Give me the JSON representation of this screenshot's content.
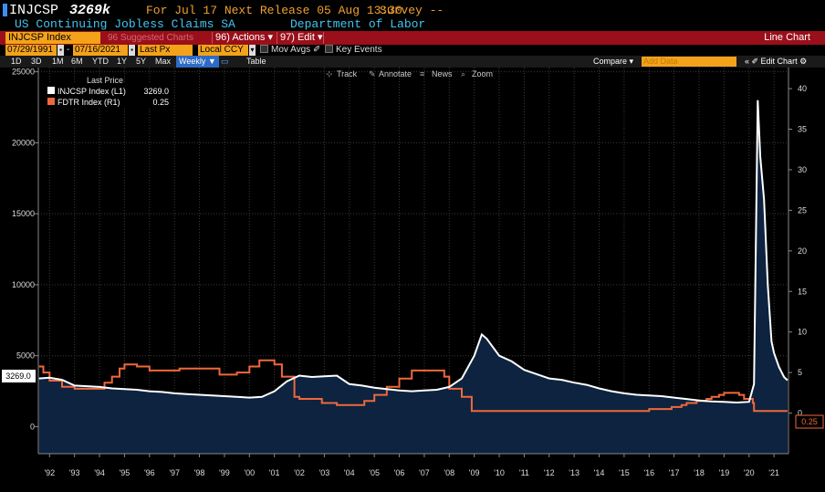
{
  "header": {
    "ticker": "INJCSP",
    "last_value": "3269k",
    "release_info": "For Jul 17 Next Release 05 Aug 13:30",
    "survey": "Survey --",
    "description": "US Continuing Jobless Claims SA",
    "source": "Department of Labor"
  },
  "menu": {
    "index_tab": "INJCSP Index",
    "suggested": "96 Suggested Charts",
    "actions": "96) Actions ▾",
    "edit": "97) Edit ▾",
    "chart_type": "Line Chart"
  },
  "controls": {
    "start_date": "07/29/1991",
    "end_date": "07/16/2021",
    "price_field": "Last Px",
    "currency": "Local CCY",
    "mov_avgs": "Mov Avgs",
    "key_events": "Key Events",
    "periods": [
      "1D",
      "3D",
      "1M",
      "6M",
      "YTD",
      "1Y",
      "5Y",
      "Max"
    ],
    "frequency": "Weekly ▼",
    "table": "Table",
    "compare": "Compare ▾",
    "add_data": "Add Data",
    "edit_chart": "« ✐ Edit Chart ⚙"
  },
  "toolbar": {
    "track": "Track",
    "annotate": "Annotate",
    "news": "News",
    "zoom": "Zoom"
  },
  "legend": {
    "header": "Last Price",
    "items": [
      {
        "label": "INJCSP Index  (L1)",
        "value": "3269.0",
        "color": "#ffffff"
      },
      {
        "label": "FDTR Index  (R1)",
        "value": "0.25",
        "color": "#f0683a"
      }
    ]
  },
  "chart_data": {
    "type": "line",
    "x_tick_labels": [
      "'92",
      "'93",
      "'94",
      "'95",
      "'96",
      "'97",
      "'98",
      "'99",
      "'00",
      "'01",
      "'02",
      "'03",
      "'04",
      "'05",
      "'06",
      "'07",
      "'08",
      "'09",
      "'10",
      "'11",
      "'12",
      "'13",
      "'14",
      "'15",
      "'16",
      "'17",
      "'18",
      "'19",
      "'20",
      "'21"
    ],
    "left_axis": {
      "ticks": [
        0,
        5000,
        10000,
        15000,
        20000,
        25000
      ],
      "ylim": [
        -1900,
        25300
      ]
    },
    "right_axis": {
      "ticks": [
        0,
        5,
        10,
        15,
        20,
        25,
        30,
        35,
        40
      ],
      "ylim": [
        -5,
        42.6
      ]
    },
    "last_value_labels": {
      "left": "3269.0",
      "right": "0.25"
    },
    "series": [
      {
        "name": "INJCSP Index",
        "axis": "left",
        "color": "#ffffff",
        "fill": "#0d2340",
        "points": [
          [
            1991.58,
            3400
          ],
          [
            1992.0,
            3450
          ],
          [
            1992.5,
            3300
          ],
          [
            1993.0,
            2900
          ],
          [
            1993.5,
            2850
          ],
          [
            1994.0,
            2800
          ],
          [
            1994.5,
            2700
          ],
          [
            1995.0,
            2650
          ],
          [
            1995.5,
            2600
          ],
          [
            1996.0,
            2500
          ],
          [
            1996.5,
            2450
          ],
          [
            1997.0,
            2350
          ],
          [
            1997.5,
            2300
          ],
          [
            1998.0,
            2250
          ],
          [
            1998.5,
            2200
          ],
          [
            1999.0,
            2150
          ],
          [
            1999.5,
            2100
          ],
          [
            2000.0,
            2050
          ],
          [
            2000.5,
            2100
          ],
          [
            2001.0,
            2500
          ],
          [
            2001.5,
            3200
          ],
          [
            2002.0,
            3600
          ],
          [
            2002.5,
            3500
          ],
          [
            2003.0,
            3550
          ],
          [
            2003.5,
            3600
          ],
          [
            2004.0,
            3000
          ],
          [
            2004.5,
            2900
          ],
          [
            2005.0,
            2750
          ],
          [
            2005.5,
            2650
          ],
          [
            2006.0,
            2550
          ],
          [
            2006.5,
            2500
          ],
          [
            2007.0,
            2550
          ],
          [
            2007.5,
            2600
          ],
          [
            2008.0,
            2800
          ],
          [
            2008.5,
            3400
          ],
          [
            2009.0,
            5000
          ],
          [
            2009.3,
            6500
          ],
          [
            2009.5,
            6200
          ],
          [
            2010.0,
            5000
          ],
          [
            2010.5,
            4600
          ],
          [
            2011.0,
            4000
          ],
          [
            2011.5,
            3700
          ],
          [
            2012.0,
            3400
          ],
          [
            2012.5,
            3300
          ],
          [
            2013.0,
            3100
          ],
          [
            2013.5,
            2950
          ],
          [
            2014.0,
            2700
          ],
          [
            2014.5,
            2500
          ],
          [
            2015.0,
            2350
          ],
          [
            2015.5,
            2250
          ],
          [
            2016.0,
            2200
          ],
          [
            2016.5,
            2150
          ],
          [
            2017.0,
            2050
          ],
          [
            2017.5,
            1950
          ],
          [
            2018.0,
            1850
          ],
          [
            2018.5,
            1780
          ],
          [
            2019.0,
            1750
          ],
          [
            2019.5,
            1700
          ],
          [
            2020.0,
            1750
          ],
          [
            2020.2,
            3000
          ],
          [
            2020.35,
            23000
          ],
          [
            2020.45,
            19000
          ],
          [
            2020.6,
            16000
          ],
          [
            2020.75,
            10000
          ],
          [
            2020.9,
            6000
          ],
          [
            2021.0,
            5200
          ],
          [
            2021.2,
            4200
          ],
          [
            2021.4,
            3500
          ],
          [
            2021.54,
            3269
          ]
        ]
      },
      {
        "name": "FDTR Index",
        "axis": "right",
        "color": "#f0683a",
        "points": [
          [
            1991.58,
            5.75
          ],
          [
            1991.75,
            5.0
          ],
          [
            1992.0,
            4.0
          ],
          [
            1992.5,
            3.25
          ],
          [
            1993.0,
            3.0
          ],
          [
            1994.0,
            3.0
          ],
          [
            1994.2,
            3.75
          ],
          [
            1994.5,
            4.5
          ],
          [
            1994.8,
            5.5
          ],
          [
            1995.0,
            6.0
          ],
          [
            1995.5,
            5.75
          ],
          [
            1996.0,
            5.25
          ],
          [
            1997.0,
            5.25
          ],
          [
            1997.2,
            5.5
          ],
          [
            1998.5,
            5.5
          ],
          [
            1998.8,
            4.75
          ],
          [
            1999.5,
            5.0
          ],
          [
            2000.0,
            5.75
          ],
          [
            2000.4,
            6.5
          ],
          [
            2000.9,
            6.5
          ],
          [
            2001.0,
            6.0
          ],
          [
            2001.3,
            4.5
          ],
          [
            2001.8,
            2.0
          ],
          [
            2002.0,
            1.75
          ],
          [
            2002.9,
            1.25
          ],
          [
            2003.5,
            1.0
          ],
          [
            2004.4,
            1.0
          ],
          [
            2004.6,
            1.5
          ],
          [
            2005.0,
            2.25
          ],
          [
            2005.5,
            3.25
          ],
          [
            2006.0,
            4.25
          ],
          [
            2006.5,
            5.25
          ],
          [
            2007.6,
            5.25
          ],
          [
            2007.8,
            4.5
          ],
          [
            2008.0,
            3.0
          ],
          [
            2008.5,
            2.0
          ],
          [
            2008.9,
            0.25
          ],
          [
            2015.9,
            0.25
          ],
          [
            2016.0,
            0.5
          ],
          [
            2016.9,
            0.75
          ],
          [
            2017.3,
            1.0
          ],
          [
            2017.5,
            1.25
          ],
          [
            2017.9,
            1.5
          ],
          [
            2018.3,
            1.75
          ],
          [
            2018.5,
            2.0
          ],
          [
            2018.8,
            2.25
          ],
          [
            2019.0,
            2.5
          ],
          [
            2019.6,
            2.25
          ],
          [
            2019.8,
            1.75
          ],
          [
            2020.15,
            1.25
          ],
          [
            2020.2,
            0.25
          ],
          [
            2021.54,
            0.25
          ]
        ]
      }
    ]
  }
}
